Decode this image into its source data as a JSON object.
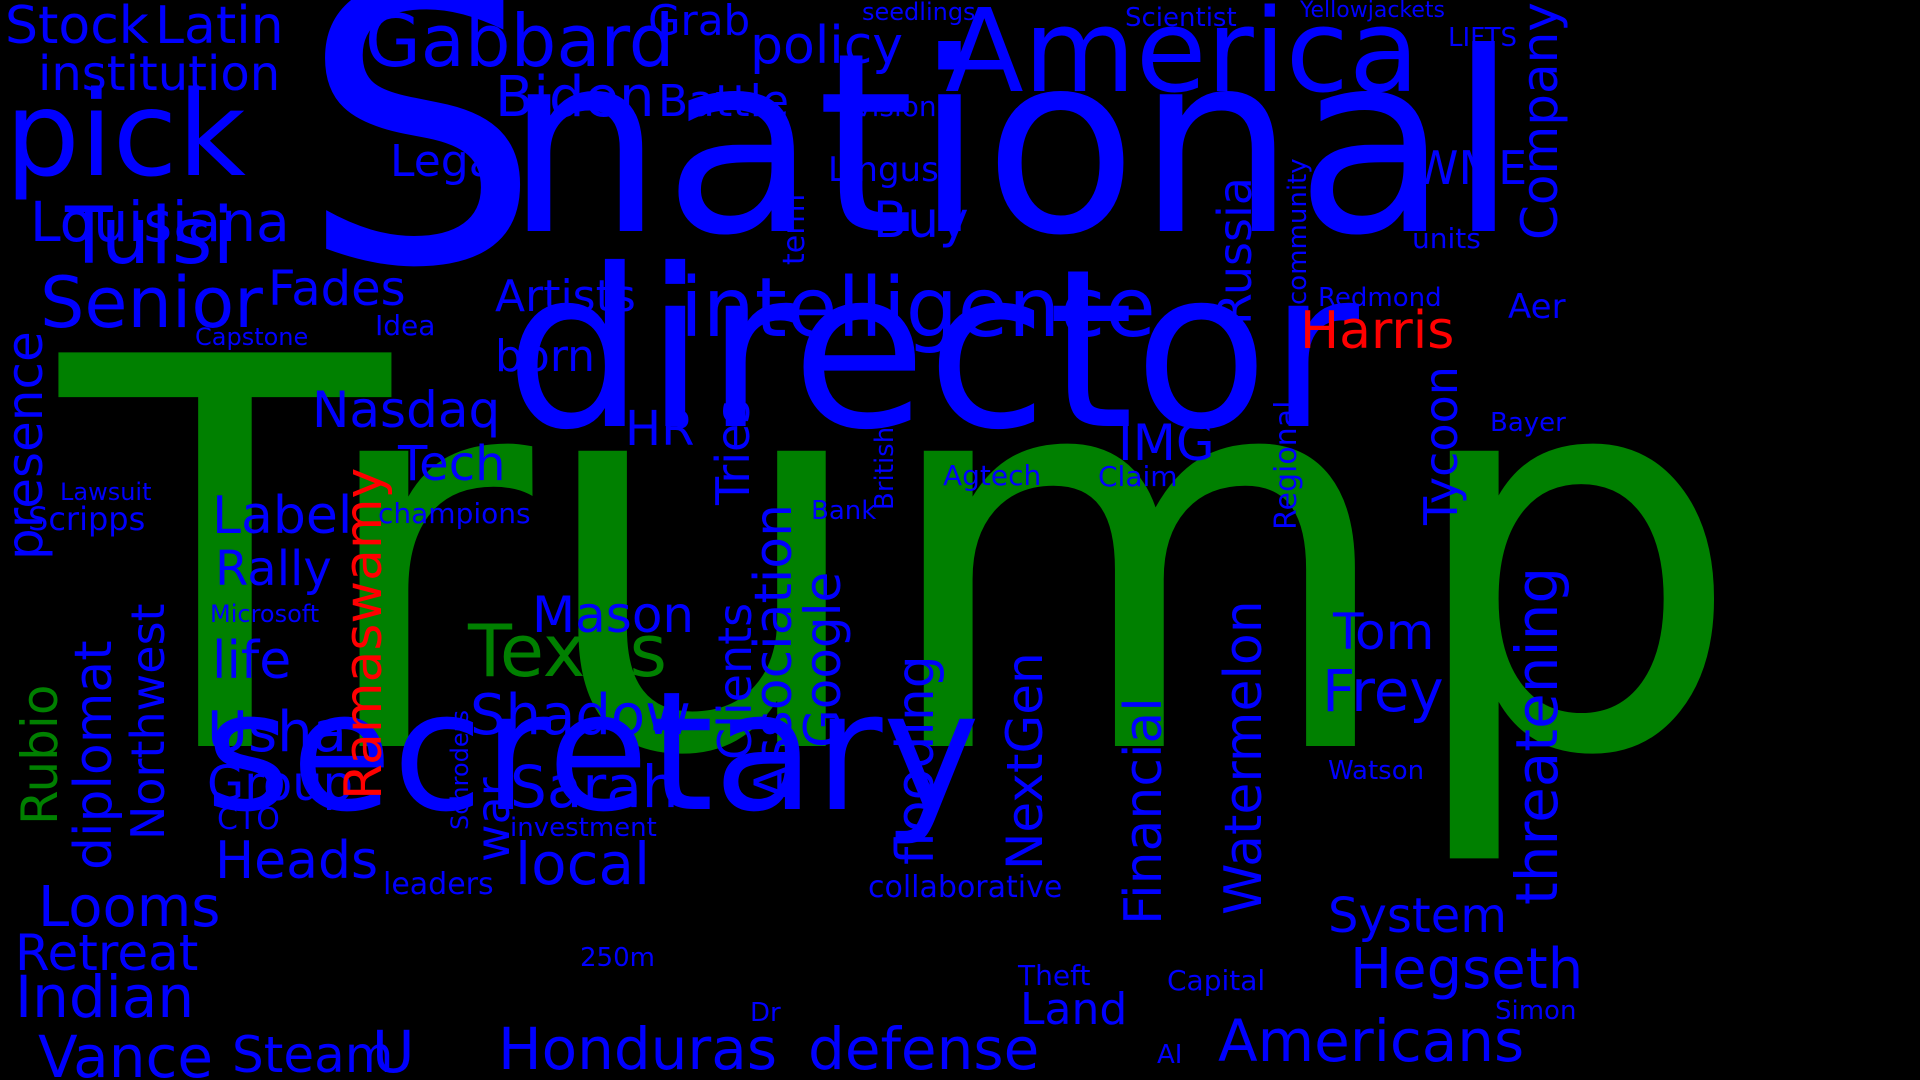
{
  "colors": {
    "background": "#000000",
    "blue": "#0000ff",
    "green": "#008000",
    "red": "#ff0000"
  },
  "words": [
    {
      "text": "Trump",
      "color": "green",
      "vertical": false
    },
    {
      "text": "S",
      "color": "blue",
      "vertical": false
    },
    {
      "text": "national",
      "color": "blue",
      "vertical": false
    },
    {
      "text": "director",
      "color": "blue",
      "vertical": false
    },
    {
      "text": "secretary",
      "color": "blue",
      "vertical": false
    },
    {
      "text": "America",
      "color": "blue",
      "vertical": false
    },
    {
      "text": "intelligence",
      "color": "blue",
      "vertical": false
    },
    {
      "text": "pick",
      "color": "blue",
      "vertical": false
    },
    {
      "text": "Tulsi",
      "color": "blue",
      "vertical": false
    },
    {
      "text": "Gabbard",
      "color": "blue",
      "vertical": false
    },
    {
      "text": "Senior",
      "color": "blue",
      "vertical": false
    },
    {
      "text": "Louisiana",
      "color": "blue",
      "vertical": false
    },
    {
      "text": "Stock",
      "color": "blue",
      "vertical": false
    },
    {
      "text": "Latin",
      "color": "blue",
      "vertical": false
    },
    {
      "text": "institution",
      "color": "blue",
      "vertical": false
    },
    {
      "text": "Biden",
      "color": "blue",
      "vertical": false
    },
    {
      "text": "policy",
      "color": "blue",
      "vertical": false
    },
    {
      "text": "Grab",
      "color": "blue",
      "vertical": false
    },
    {
      "text": "Battle",
      "color": "blue",
      "vertical": false
    },
    {
      "text": "Legal",
      "color": "blue",
      "vertical": false
    },
    {
      "text": "Fades",
      "color": "blue",
      "vertical": false
    },
    {
      "text": "Artists",
      "color": "blue",
      "vertical": false
    },
    {
      "text": "born",
      "color": "blue",
      "vertical": false
    },
    {
      "text": "Idea",
      "color": "blue",
      "vertical": false
    },
    {
      "text": "Capstone",
      "color": "blue",
      "vertical": false
    },
    {
      "text": "Nasdaq",
      "color": "blue",
      "vertical": false
    },
    {
      "text": "HR",
      "color": "blue",
      "vertical": false
    },
    {
      "text": "Tech",
      "color": "blue",
      "vertical": false
    },
    {
      "text": "Label",
      "color": "blue",
      "vertical": false
    },
    {
      "text": "Rally",
      "color": "blue",
      "vertical": false
    },
    {
      "text": "life",
      "color": "blue",
      "vertical": false
    },
    {
      "text": "Microsoft",
      "color": "blue",
      "vertical": false
    },
    {
      "text": "Usha",
      "color": "blue",
      "vertical": false
    },
    {
      "text": "Group",
      "color": "blue",
      "vertical": false
    },
    {
      "text": "CTO",
      "color": "blue",
      "vertical": false
    },
    {
      "text": "Heads",
      "color": "blue",
      "vertical": false
    },
    {
      "text": "Mason",
      "color": "blue",
      "vertical": false
    },
    {
      "text": "Texas",
      "color": "green",
      "vertical": false
    },
    {
      "text": "Shadow",
      "color": "blue",
      "vertical": false
    },
    {
      "text": "Sarah",
      "color": "blue",
      "vertical": false
    },
    {
      "text": "local",
      "color": "blue",
      "vertical": false
    },
    {
      "text": "investment",
      "color": "blue",
      "vertical": false
    },
    {
      "text": "leaders",
      "color": "blue",
      "vertical": false
    },
    {
      "text": "250m",
      "color": "blue",
      "vertical": false
    },
    {
      "text": "Honduras",
      "color": "blue",
      "vertical": false
    },
    {
      "text": "Steam",
      "color": "blue",
      "vertical": false
    },
    {
      "text": "U",
      "color": "blue",
      "vertical": false
    },
    {
      "text": "Vance",
      "color": "blue",
      "vertical": false
    },
    {
      "text": "Indian",
      "color": "blue",
      "vertical": false
    },
    {
      "text": "Retreat",
      "color": "blue",
      "vertical": false
    },
    {
      "text": "Looms",
      "color": "blue",
      "vertical": false
    },
    {
      "text": "Lawsuit",
      "color": "blue",
      "vertical": false
    },
    {
      "text": "Scripps",
      "color": "blue",
      "vertical": false
    },
    {
      "text": "champions",
      "color": "blue",
      "vertical": false
    },
    {
      "text": "Buy",
      "color": "blue",
      "vertical": false
    },
    {
      "text": "Lingus",
      "color": "blue",
      "vertical": false
    },
    {
      "text": "vision",
      "color": "blue",
      "vertical": false
    },
    {
      "text": "seedlings",
      "color": "blue",
      "vertical": false
    },
    {
      "text": "Scientist",
      "color": "blue",
      "vertical": false
    },
    {
      "text": "Yellowjackets",
      "color": "blue",
      "vertical": false
    },
    {
      "text": "LIFTS",
      "color": "blue",
      "vertical": false
    },
    {
      "text": "WME",
      "color": "blue",
      "vertical": false
    },
    {
      "text": "units",
      "color": "blue",
      "vertical": false
    },
    {
      "text": "Redmond",
      "color": "blue",
      "vertical": false
    },
    {
      "text": "Harris",
      "color": "red",
      "vertical": false
    },
    {
      "text": "Aer",
      "color": "blue",
      "vertical": false
    },
    {
      "text": "Bayer",
      "color": "blue",
      "vertical": false
    },
    {
      "text": "IMG",
      "color": "blue",
      "vertical": false
    },
    {
      "text": "Claim",
      "color": "blue",
      "vertical": false
    },
    {
      "text": "Agtech",
      "color": "blue",
      "vertical": false
    },
    {
      "text": "Bank",
      "color": "blue",
      "vertical": false
    },
    {
      "text": "Tom",
      "color": "blue",
      "vertical": false
    },
    {
      "text": "Frey",
      "color": "blue",
      "vertical": false
    },
    {
      "text": "Watson",
      "color": "blue",
      "vertical": false
    },
    {
      "text": "System",
      "color": "blue",
      "vertical": false
    },
    {
      "text": "Hegseth",
      "color": "blue",
      "vertical": false
    },
    {
      "text": "Americans",
      "color": "blue",
      "vertical": false
    },
    {
      "text": "Simon",
      "color": "blue",
      "vertical": false
    },
    {
      "text": "Capital",
      "color": "blue",
      "vertical": false
    },
    {
      "text": "Theft",
      "color": "blue",
      "vertical": false
    },
    {
      "text": "Land",
      "color": "blue",
      "vertical": false
    },
    {
      "text": "collaborative",
      "color": "blue",
      "vertical": false
    },
    {
      "text": "defense",
      "color": "blue",
      "vertical": false
    },
    {
      "text": "Dr",
      "color": "blue",
      "vertical": false
    },
    {
      "text": "AI",
      "color": "blue",
      "vertical": false
    },
    {
      "text": "presence",
      "color": "blue",
      "vertical": true
    },
    {
      "text": "Rubio",
      "color": "green",
      "vertical": true
    },
    {
      "text": "diplomat",
      "color": "blue",
      "vertical": true
    },
    {
      "text": "Northwest",
      "color": "blue",
      "vertical": true
    },
    {
      "text": "Ramaswamy",
      "color": "red",
      "vertical": true
    },
    {
      "text": "war",
      "color": "blue",
      "vertical": true
    },
    {
      "text": "Schroders",
      "color": "blue",
      "vertical": true
    },
    {
      "text": "Tries",
      "color": "blue",
      "vertical": true
    },
    {
      "text": "Clients",
      "color": "blue",
      "vertical": true
    },
    {
      "text": "Association",
      "color": "blue",
      "vertical": true
    },
    {
      "text": "Google",
      "color": "blue",
      "vertical": true
    },
    {
      "text": "term",
      "color": "blue",
      "vertical": true
    },
    {
      "text": "British",
      "color": "blue",
      "vertical": true
    },
    {
      "text": "flooding",
      "color": "blue",
      "vertical": true
    },
    {
      "text": "NextGen",
      "color": "blue",
      "vertical": true
    },
    {
      "text": "Financial",
      "color": "blue",
      "vertical": true
    },
    {
      "text": "Russia",
      "color": "blue",
      "vertical": true
    },
    {
      "text": "Watermelon",
      "color": "blue",
      "vertical": true
    },
    {
      "text": "community",
      "color": "blue",
      "vertical": true
    },
    {
      "text": "Regional",
      "color": "blue",
      "vertical": true
    },
    {
      "text": "Tycoon",
      "color": "blue",
      "vertical": true
    },
    {
      "text": "Company",
      "color": "blue",
      "vertical": true
    },
    {
      "text": "threatening",
      "color": "blue",
      "vertical": true
    }
  ]
}
